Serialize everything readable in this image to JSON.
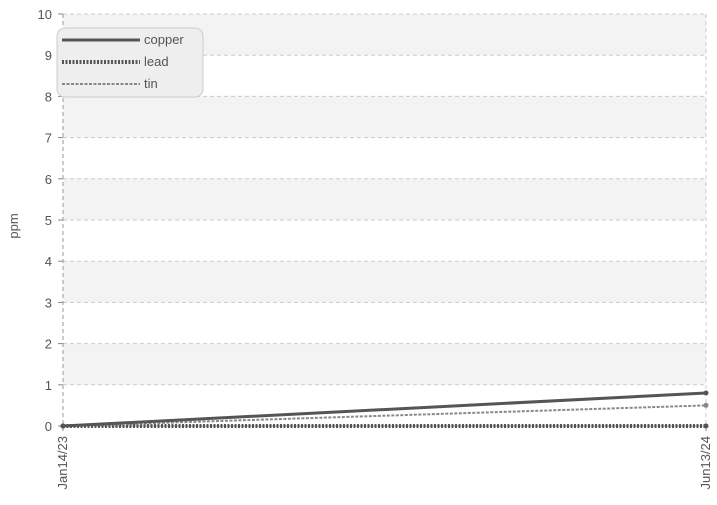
{
  "chart_data": {
    "type": "line",
    "title": "",
    "xlabel": "",
    "ylabel": "ppm",
    "ylim": [
      0,
      10
    ],
    "yticks": [
      0,
      1,
      2,
      3,
      4,
      5,
      6,
      7,
      8,
      9,
      10
    ],
    "categories": [
      "Jan14/23",
      "Jun13/24"
    ],
    "grid": true,
    "legend_position": "top-left",
    "series": [
      {
        "name": "copper",
        "values": [
          0,
          0.8
        ],
        "color": "#555555",
        "style": "solid"
      },
      {
        "name": "lead",
        "values": [
          0,
          0
        ],
        "color": "#555555",
        "style": "dotted"
      },
      {
        "name": "tin",
        "values": [
          0,
          0.5
        ],
        "color": "#888888",
        "style": "dashed"
      }
    ]
  }
}
